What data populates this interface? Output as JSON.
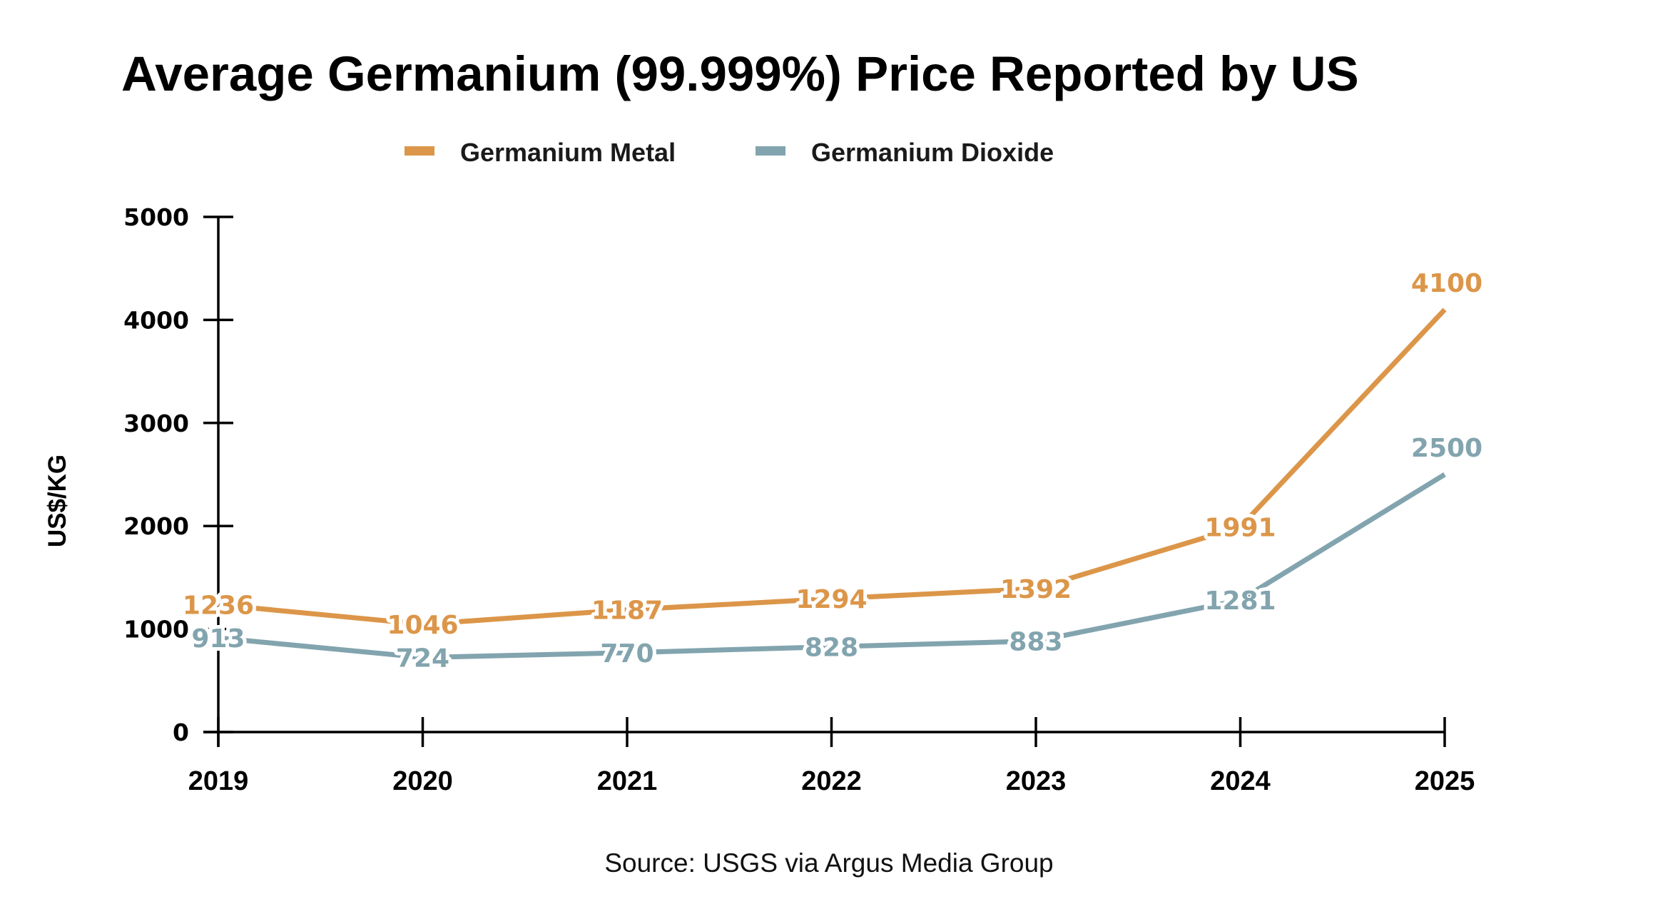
{
  "chart_data": {
    "type": "line",
    "title": "Average Germanium (99.999%) Price Reported by US",
    "xlabel": "",
    "ylabel": "US$/KG",
    "x": [
      "2019",
      "2020",
      "2021",
      "2022",
      "2023",
      "2024",
      "2025"
    ],
    "ylim": [
      0,
      5000
    ],
    "yticks": [
      0,
      1000,
      2000,
      3000,
      4000,
      5000
    ],
    "grid": false,
    "legend_position": "top-center",
    "series": [
      {
        "name": "Germanium Metal",
        "color": "#DC9649",
        "values": [
          1236,
          1046,
          1187,
          1294,
          1392,
          1991,
          4100
        ],
        "labels": [
          "1236",
          "1046",
          "1187",
          "1294",
          "1392",
          "1991",
          "4100"
        ]
      },
      {
        "name": "Germanium Dioxide",
        "color": "#82A4AE",
        "values": [
          913,
          724,
          770,
          828,
          883,
          1281,
          2500
        ],
        "labels": [
          "913",
          "724",
          "770",
          "828",
          "883",
          "1281",
          "2500"
        ]
      }
    ],
    "source": "Source: USGS via Argus Media Group"
  }
}
